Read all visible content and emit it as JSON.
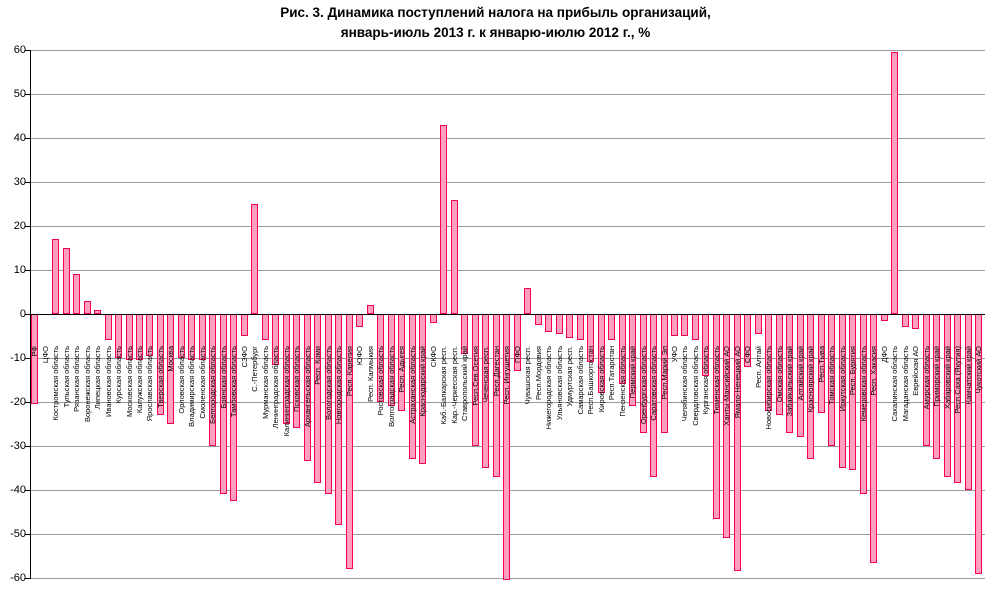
{
  "title": {
    "line1": "Рис. 3. Динамика поступлений налога на прибыль организаций,",
    "line2": "январь-июль 2013 г. к январю-июлю 2012 г., %"
  },
  "chart_data": {
    "type": "bar",
    "title": "Рис. 3. Динамика поступлений налога на прибыль организаций, январь-июль 2013 г. к январю-июлю 2012 г., %",
    "xlabel": "",
    "ylabel": "%",
    "ylim": [
      -60,
      60
    ],
    "ytick_step": 10,
    "yticks": [
      60,
      50,
      40,
      30,
      20,
      10,
      0,
      -10,
      -20,
      -30,
      -40,
      -50,
      -60
    ],
    "grid": true,
    "legend": "none",
    "bar_fill_color": "#FF9FBE",
    "bar_border_color": "#F2005C",
    "gridline_color": "#9a9a9a",
    "categories": [
      "РФ",
      "ЦФО",
      "Костромская область",
      "Тульская область",
      "Рязанская область",
      "Воронежская область",
      "Липецкая область",
      "Ивановская область",
      "Курская область",
      "Московская область",
      "Калужская область",
      "Ярославская область",
      "Тверская область",
      "Москва",
      "Орловская область",
      "Владимирская область",
      "Смоленская область",
      "Белгородская область",
      "Брянская область",
      "Тамбовская область",
      "СЗФО",
      "С.-Петербург",
      "Мурманская область",
      "Ленинградская область",
      "Калининградская область",
      "Псковская область",
      "Архангельская область",
      "Респ. Коми",
      "Вологодская область",
      "Новгородская область",
      "Респ. Карелия",
      "ЮФО",
      "Респ. Калмыкия",
      "Ростовская область",
      "Волгоградская область",
      "Респ. Адыгея",
      "Астраханская область",
      "Краснодарский край",
      "СКФО",
      "Каб.-Балкарская респ.",
      "Кар.-Черкесская респ.",
      "Ставропольский край",
      "Респ.Сев.Осетия",
      "Чеченская респ.",
      "Респ.Дагестан",
      "Респ. Ингушетия",
      "ПФО",
      "Чувашская респ.",
      "Респ.Мордовия",
      "Нижегородская область",
      "Ульяновская область",
      "Удмуртская респ.",
      "Самарская область",
      "Респ.Башкортостан",
      "Кировская область",
      "Респ.Татарстан",
      "Пензенская область",
      "Пермский край",
      "Оренбургская область",
      "Саратовская область",
      "Респ.Марий Эл",
      "УФО",
      "Челябинская область",
      "Свердловская область",
      "Курганская область",
      "Тюменская область",
      "Ханты-Мансийский АО",
      "Ямало-Ненецкий АО",
      "СФО",
      "Респ. Алтай",
      "Новосибирская область",
      "Омская область",
      "Забайкальский край",
      "Алтайский край",
      "Красноярский край",
      "Респ.Тыва",
      "Томская область",
      "Иркутская область",
      "Респ. Бурятия",
      "Кемеровская область",
      "Респ. Хакасия",
      "ДФО",
      "Сахалинская область",
      "Магаданская область",
      "Еврейская АО",
      "Амурская область",
      "Приморский край",
      "Хабаровский край",
      "Респ.Саха (Якутия)",
      "Камчатский край",
      "Чукотский АО"
    ],
    "values": [
      -20.5,
      0,
      17,
      15,
      9,
      3,
      1,
      -6,
      -10,
      -10.5,
      -10.5,
      -9.5,
      -23,
      -25,
      -10,
      -10.5,
      -10.5,
      -30,
      -41,
      -42.5,
      -5,
      25,
      -6,
      -11.5,
      -25,
      -26,
      -33.5,
      -38.5,
      -41,
      -48,
      -58,
      -3,
      2,
      -20,
      -21,
      -22,
      -33,
      -34,
      -2,
      43,
      26,
      -9,
      -30,
      -35,
      -37,
      -60.5,
      -13,
      6,
      -2.5,
      -4,
      -4.5,
      -5.5,
      -6,
      -11,
      -18,
      -6,
      -16,
      -21,
      -27,
      -37,
      -27,
      -5,
      -5,
      -6,
      -14,
      -46.5,
      -51,
      -58.5,
      -12,
      -4.5,
      -22,
      -23,
      -27,
      -28,
      -33,
      -22.5,
      -30,
      -35,
      -35.5,
      -41,
      -56.5,
      -1.5,
      59.5,
      -3,
      -3.5,
      -30,
      -33,
      -37,
      -38.5,
      -40,
      -59
    ]
  }
}
